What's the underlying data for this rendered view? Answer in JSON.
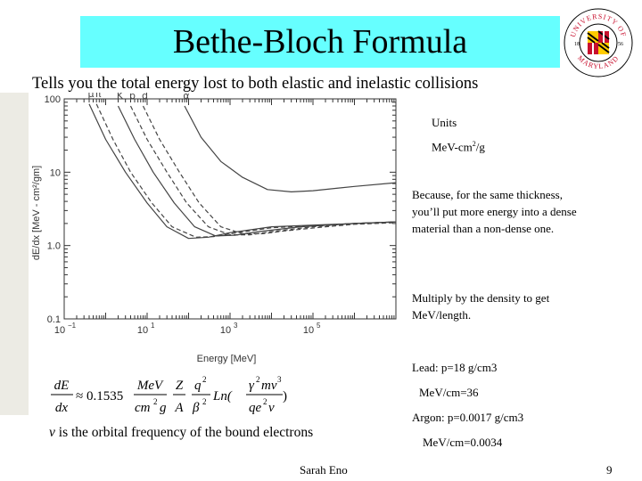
{
  "slide": {
    "title": "Bethe-Bloch Formula",
    "subtitle": "Tells you the total energy lost to both elastic and inelastic collisions",
    "footer_name": "Sarah Eno",
    "page_number": "9"
  },
  "logo": {
    "text_top": "UNIVERSITY OF",
    "text_bottom": "MARYLAND",
    "year_left": "18",
    "year_right": "56",
    "colors": {
      "red": "#c8102e",
      "gold": "#ffcc00",
      "black": "#000000",
      "white": "#ffffff"
    }
  },
  "chart_data": {
    "type": "line",
    "xlabel": "Energy [MeV]",
    "ylabel": "dE/dx [MeV - cm²/gm]",
    "x_scale": "log",
    "y_scale": "log",
    "xlim": [
      0.1,
      10000000
    ],
    "ylim": [
      0.1,
      100
    ],
    "x_ticks": [
      {
        "value": 0.1,
        "base": "10",
        "exp": "−1"
      },
      {
        "value": 10,
        "base": "10",
        "exp": "1"
      },
      {
        "value": 1000,
        "base": "10",
        "exp": "3"
      },
      {
        "value": 100000,
        "base": "10",
        "exp": "5"
      }
    ],
    "y_ticks": [
      {
        "value": 100,
        "label": "100"
      },
      {
        "value": 10,
        "label": "10"
      },
      {
        "value": 1,
        "label": "1.0"
      },
      {
        "value": 0.1,
        "label": "0.1"
      }
    ],
    "grid": false,
    "series": [
      {
        "name": "μ",
        "style": "solid",
        "points": [
          [
            0.4,
            85
          ],
          [
            1,
            28
          ],
          [
            3,
            10
          ],
          [
            10,
            3.8
          ],
          [
            30,
            1.8
          ],
          [
            100,
            1.25
          ],
          [
            300,
            1.3
          ],
          [
            1000,
            1.5
          ],
          [
            10000,
            1.8
          ],
          [
            1000000,
            2.0
          ],
          [
            10000000,
            2.1
          ]
        ]
      },
      {
        "name": "π",
        "style": "dashed",
        "points": [
          [
            0.6,
            85
          ],
          [
            1.5,
            28
          ],
          [
            4,
            10
          ],
          [
            13,
            3.8
          ],
          [
            40,
            1.8
          ],
          [
            150,
            1.3
          ],
          [
            400,
            1.32
          ],
          [
            1500,
            1.5
          ],
          [
            10000,
            1.75
          ],
          [
            1000000,
            2.0
          ],
          [
            10000000,
            2.1
          ]
        ]
      },
      {
        "name": "K",
        "style": "solid",
        "points": [
          [
            2,
            80
          ],
          [
            5,
            28
          ],
          [
            14,
            10
          ],
          [
            45,
            3.8
          ],
          [
            140,
            1.8
          ],
          [
            450,
            1.35
          ],
          [
            1300,
            1.38
          ],
          [
            5000,
            1.55
          ],
          [
            50000,
            1.8
          ],
          [
            1000000,
            2.0
          ],
          [
            10000000,
            2.1
          ]
        ]
      },
      {
        "name": "p",
        "style": "dashed",
        "points": [
          [
            4,
            80
          ],
          [
            10,
            28
          ],
          [
            30,
            10
          ],
          [
            90,
            3.8
          ],
          [
            300,
            1.8
          ],
          [
            1000,
            1.4
          ],
          [
            3000,
            1.4
          ],
          [
            10000,
            1.55
          ],
          [
            100000,
            1.8
          ],
          [
            1000000,
            2.0
          ],
          [
            10000000,
            2.1
          ]
        ]
      },
      {
        "name": "d",
        "style": "dashed",
        "points": [
          [
            8,
            80
          ],
          [
            20,
            28
          ],
          [
            60,
            10
          ],
          [
            180,
            3.8
          ],
          [
            600,
            1.8
          ],
          [
            2000,
            1.45
          ],
          [
            6000,
            1.45
          ],
          [
            20000,
            1.58
          ],
          [
            200000,
            1.8
          ],
          [
            1000000,
            1.95
          ],
          [
            10000000,
            2.05
          ]
        ]
      },
      {
        "name": "α",
        "style": "solid",
        "points": [
          [
            80,
            80
          ],
          [
            200,
            30
          ],
          [
            600,
            14
          ],
          [
            2000,
            8.5
          ],
          [
            8000,
            5.8
          ],
          [
            30000,
            5.4
          ],
          [
            100000,
            5.6
          ],
          [
            1000000,
            6.4
          ],
          [
            10000000,
            7.2
          ]
        ]
      }
    ]
  },
  "notes": {
    "units_label": "Units",
    "units_value_pre": "MeV-cm",
    "units_value_sup": "2",
    "units_value_post": "/g",
    "density_note": "Because, for the same thickness, you’ll put more energy into a dense material than a non-dense one.",
    "multiply_note": "Multiply by the density to get MeV/length.",
    "lead_line": "Lead: p=18 g/cm3",
    "lead_mev": "MeV/cm=36",
    "argon_line": "Argon: p=0.0017 g/cm3",
    "argon_mev": "MeV/cm=0.0034"
  },
  "formula": {
    "dE": "dE",
    "dx": "dx",
    "approx": "≈",
    "coefficient": "0.1535",
    "MeV": "MeV",
    "cm": "cm",
    "two": "2",
    "g": "g",
    "Z": "Z",
    "A": "A",
    "q": "q",
    "beta": "β",
    "Ln": "Ln(",
    "gamma": "γ",
    "mv": "mv",
    "three": "3",
    "qe": "qe",
    "v": "v",
    "close_paren": ")"
  },
  "orbital_note": {
    "symbol": "v",
    "text": " is the orbital frequency of the bound electrons"
  }
}
